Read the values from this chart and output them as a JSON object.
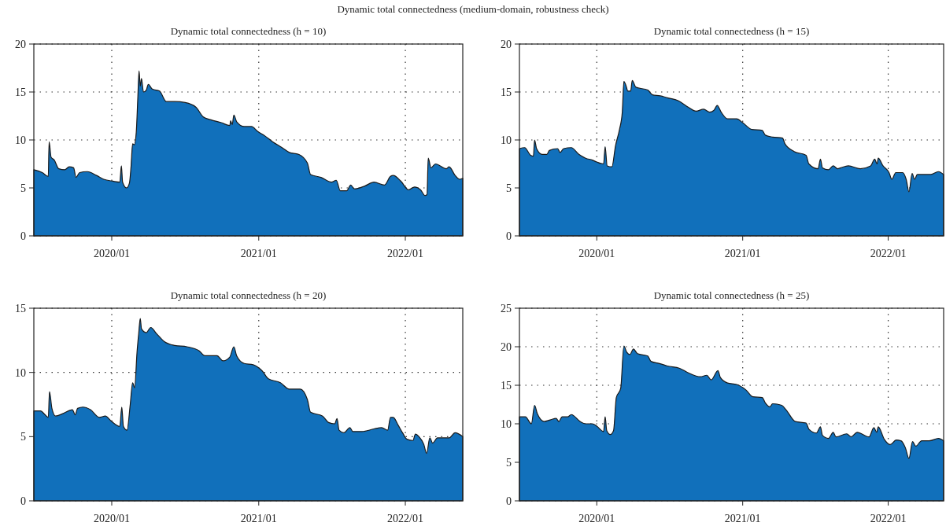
{
  "chart_data": [
    {
      "type": "other",
      "title": "Dynamic total connectedness (medium-domain, robustness check)"
    },
    {
      "type": "area",
      "title": "Dynamic total connectedness (h = 10)",
      "grid": true,
      "x": [
        "2019-06-21",
        "2019-07-12",
        "2019-07-27",
        "2019-07-29",
        "2019-08-03",
        "2019-08-11",
        "2019-08-22",
        "2019-09-06",
        "2019-09-17",
        "2019-09-28",
        "2019-10-04",
        "2019-10-13",
        "2019-11-01",
        "2019-11-24",
        "2019-12-12",
        "2020-01-04",
        "2020-01-21",
        "2020-01-25",
        "2020-01-28",
        "2020-02-07",
        "2020-02-14",
        "2020-02-18",
        "2020-02-22",
        "2020-02-26",
        "2020-03-02",
        "2020-03-06",
        "2020-03-09",
        "2020-03-12",
        "2020-03-15",
        "2020-03-20",
        "2020-03-27",
        "2020-04-01",
        "2020-04-11",
        "2020-04-29",
        "2020-05-16",
        "2020-06-06",
        "2020-07-02",
        "2020-07-29",
        "2020-08-16",
        "2020-09-04",
        "2020-09-30",
        "2020-10-21",
        "2020-10-23",
        "2020-10-27",
        "2020-10-31",
        "2020-11-07",
        "2020-11-26",
        "2020-12-14",
        "2020-12-29",
        "2021-01-17",
        "2021-02-05",
        "2021-02-28",
        "2021-03-18",
        "2021-04-10",
        "2021-05-02",
        "2021-05-10",
        "2021-06-05",
        "2021-07-01",
        "2021-07-13",
        "2021-07-23",
        "2021-08-08",
        "2021-08-18",
        "2021-08-27",
        "2021-09-22",
        "2021-10-15",
        "2021-11-10",
        "2021-11-25",
        "2021-12-02",
        "2021-12-21",
        "2022-01-09",
        "2022-01-24",
        "2022-02-08",
        "2022-02-19",
        "2022-02-24",
        "2022-02-27",
        "2022-03-06",
        "2022-03-17",
        "2022-04-13",
        "2022-04-20",
        "2022-05-05",
        "2022-05-16",
        "2022-05-24"
      ],
      "series": [
        {
          "color": "#1170bb",
          "values": [
            6.9,
            6.6,
            6.2,
            9.8,
            8.2,
            7.9,
            7.0,
            6.9,
            7.2,
            7.1,
            6.1,
            6.6,
            6.7,
            6.3,
            5.9,
            5.7,
            5.6,
            7.3,
            5.6,
            5.0,
            5.5,
            7.2,
            9.6,
            9.5,
            10.8,
            14.5,
            17.2,
            15.6,
            16.4,
            15.0,
            15.2,
            15.8,
            15.3,
            15.1,
            14.0,
            14.0,
            13.9,
            13.4,
            12.4,
            12.1,
            11.8,
            11.5,
            12.0,
            11.6,
            12.6,
            11.9,
            11.4,
            11.4,
            10.9,
            10.4,
            9.8,
            9.2,
            8.7,
            8.5,
            7.6,
            6.4,
            6.1,
            5.6,
            5.8,
            4.7,
            4.7,
            5.3,
            4.9,
            5.2,
            5.6,
            5.3,
            6.2,
            6.3,
            5.7,
            4.8,
            5.1,
            4.8,
            4.2,
            4.3,
            8.1,
            7.1,
            7.5,
            7.0,
            7.2,
            6.3,
            5.9,
            6.0
          ]
        }
      ],
      "xlim": [
        "2019-06-21",
        "2022-05-24"
      ],
      "ylim": [
        0,
        20
      ],
      "yticks": [
        0,
        5,
        10,
        15,
        20
      ],
      "xticks": [
        {
          "value": "2020-01-01",
          "label": "2020/01"
        },
        {
          "value": "2021-01-01",
          "label": "2021/01"
        },
        {
          "value": "2022-01-01",
          "label": "2022/01"
        }
      ]
    },
    {
      "type": "area",
      "title": "Dynamic total connectedness (h = 15)",
      "grid": true,
      "x": [
        "2019-06-21",
        "2019-07-04",
        "2019-07-19",
        "2019-07-26",
        "2019-07-29",
        "2019-08-03",
        "2019-08-17",
        "2019-08-29",
        "2019-09-04",
        "2019-09-25",
        "2019-10-01",
        "2019-10-10",
        "2019-10-29",
        "2019-11-17",
        "2019-12-04",
        "2019-12-21",
        "2020-01-01",
        "2020-01-18",
        "2020-01-22",
        "2020-01-27",
        "2020-02-08",
        "2020-02-17",
        "2020-02-27",
        "2020-03-05",
        "2020-03-09",
        "2020-03-14",
        "2020-03-19",
        "2020-03-26",
        "2020-03-30",
        "2020-04-08",
        "2020-05-08",
        "2020-05-20",
        "2020-06-08",
        "2020-06-26",
        "2020-07-23",
        "2020-08-18",
        "2020-09-06",
        "2020-09-25",
        "2020-10-10",
        "2020-10-21",
        "2020-10-29",
        "2020-11-08",
        "2020-11-24",
        "2020-12-17",
        "2021-01-01",
        "2021-01-24",
        "2021-02-19",
        "2021-02-27",
        "2021-03-17",
        "2021-04-11",
        "2021-04-17",
        "2021-05-10",
        "2021-06-09",
        "2021-06-16",
        "2021-07-09",
        "2021-07-15",
        "2021-07-20",
        "2021-08-04",
        "2021-08-16",
        "2021-08-27",
        "2021-09-04",
        "2021-09-23",
        "2021-10-23",
        "2021-11-18",
        "2021-11-28",
        "2021-12-04",
        "2021-12-07",
        "2021-12-19",
        "2022-01-03",
        "2022-01-10",
        "2022-01-20",
        "2022-02-06",
        "2022-02-15",
        "2022-02-22",
        "2022-03-02",
        "2022-03-08",
        "2022-03-15",
        "2022-04-18",
        "2022-05-07",
        "2022-05-20"
      ],
      "series": [
        {
          "color": "#1170bb",
          "values": [
            9.1,
            9.2,
            8.4,
            8.3,
            10.0,
            9.1,
            8.5,
            8.5,
            8.9,
            9.1,
            8.7,
            9.1,
            9.2,
            8.5,
            8.1,
            7.9,
            7.7,
            7.5,
            9.3,
            7.3,
            7.2,
            9.4,
            11.1,
            12.9,
            16.1,
            15.7,
            15.1,
            15.1,
            16.2,
            15.5,
            15.2,
            14.7,
            14.6,
            14.4,
            14.1,
            13.4,
            13.0,
            13.2,
            12.9,
            13.1,
            13.6,
            12.9,
            12.2,
            12.2,
            11.8,
            11.1,
            11.0,
            10.5,
            10.3,
            10.2,
            9.6,
            8.8,
            8.4,
            7.5,
            7.0,
            8.0,
            7.1,
            6.9,
            7.3,
            7.0,
            7.1,
            7.3,
            7.0,
            7.3,
            8.0,
            7.5,
            8.1,
            7.3,
            6.6,
            5.9,
            6.6,
            6.6,
            5.9,
            4.6,
            6.5,
            5.9,
            6.4,
            6.4,
            6.7,
            6.4
          ]
        }
      ],
      "xlim": [
        "2019-06-21",
        "2022-05-20"
      ],
      "ylim": [
        0,
        20
      ],
      "yticks": [
        0,
        5,
        10,
        15,
        20
      ],
      "xticks": [
        {
          "value": "2020-01-01",
          "label": "2020/01"
        },
        {
          "value": "2021-01-01",
          "label": "2021/01"
        },
        {
          "value": "2022-01-01",
          "label": "2022/01"
        }
      ]
    },
    {
      "type": "area",
      "title": "Dynamic total connectedness (h = 20)",
      "grid": true,
      "x": [
        "2019-06-21",
        "2019-07-08",
        "2019-07-19",
        "2019-07-27",
        "2019-07-30",
        "2019-08-05",
        "2019-08-14",
        "2019-09-02",
        "2019-09-25",
        "2019-10-02",
        "2019-10-08",
        "2019-10-21",
        "2019-11-09",
        "2019-12-01",
        "2019-12-16",
        "2019-12-31",
        "2020-01-21",
        "2020-01-26",
        "2020-01-30",
        "2020-02-08",
        "2020-02-16",
        "2020-02-22",
        "2020-02-27",
        "2020-03-04",
        "2020-03-08",
        "2020-03-12",
        "2020-03-15",
        "2020-03-27",
        "2020-04-07",
        "2020-04-22",
        "2020-05-11",
        "2020-06-06",
        "2020-07-06",
        "2020-08-05",
        "2020-08-20",
        "2020-09-19",
        "2020-10-04",
        "2020-10-21",
        "2020-10-31",
        "2020-11-07",
        "2020-11-26",
        "2020-12-18",
        "2021-01-10",
        "2021-01-25",
        "2021-02-24",
        "2021-03-18",
        "2021-04-14",
        "2021-05-02",
        "2021-05-10",
        "2021-06-09",
        "2021-06-24",
        "2021-07-09",
        "2021-07-15",
        "2021-07-20",
        "2021-08-01",
        "2021-08-16",
        "2021-08-23",
        "2021-09-15",
        "2021-10-15",
        "2021-11-03",
        "2021-11-18",
        "2021-11-25",
        "2021-12-02",
        "2021-12-14",
        "2021-12-25",
        "2022-01-05",
        "2022-01-20",
        "2022-01-26",
        "2022-02-04",
        "2022-02-16",
        "2022-02-23",
        "2022-03-03",
        "2022-03-10",
        "2022-03-22",
        "2022-04-20",
        "2022-05-05",
        "2022-05-24"
      ],
      "series": [
        {
          "color": "#1170bb",
          "values": [
            7.0,
            7.0,
            6.7,
            6.5,
            8.5,
            7.2,
            6.6,
            6.8,
            7.1,
            6.7,
            7.2,
            7.3,
            7.1,
            6.5,
            6.6,
            6.2,
            5.8,
            7.3,
            5.8,
            5.5,
            7.5,
            9.2,
            8.8,
            11.6,
            13.0,
            14.2,
            13.4,
            13.1,
            13.5,
            13.0,
            12.4,
            12.1,
            12.0,
            11.7,
            11.3,
            11.3,
            10.9,
            11.2,
            12.0,
            11.3,
            10.7,
            10.6,
            10.1,
            9.5,
            9.2,
            8.7,
            8.7,
            7.9,
            6.9,
            6.6,
            6.1,
            6.0,
            6.4,
            5.5,
            5.3,
            5.7,
            5.4,
            5.4,
            5.6,
            5.7,
            5.5,
            6.5,
            6.5,
            5.9,
            5.3,
            4.8,
            4.7,
            5.2,
            5.0,
            4.4,
            3.7,
            4.9,
            4.5,
            4.9,
            4.9,
            5.3,
            5.0
          ]
        }
      ],
      "xlim": [
        "2019-06-21",
        "2022-05-24"
      ],
      "ylim": [
        0,
        15
      ],
      "yticks": [
        0,
        5,
        10,
        15
      ],
      "xticks": [
        {
          "value": "2020-01-01",
          "label": "2020/01"
        },
        {
          "value": "2021-01-01",
          "label": "2021/01"
        },
        {
          "value": "2022-01-01",
          "label": "2022/01"
        }
      ]
    },
    {
      "type": "area",
      "title": "Dynamic total connectedness (h = 25)",
      "grid": true,
      "x": [
        "2019-06-21",
        "2019-07-06",
        "2019-07-21",
        "2019-07-29",
        "2019-08-05",
        "2019-08-22",
        "2019-09-06",
        "2019-09-21",
        "2019-09-28",
        "2019-10-06",
        "2019-10-20",
        "2019-10-29",
        "2019-11-20",
        "2019-12-04",
        "2019-12-21",
        "2020-01-01",
        "2020-01-18",
        "2020-01-22",
        "2020-01-26",
        "2020-02-04",
        "2020-02-12",
        "2020-02-19",
        "2020-03-01",
        "2020-03-09",
        "2020-03-16",
        "2020-03-24",
        "2020-04-02",
        "2020-04-12",
        "2020-05-08",
        "2020-05-16",
        "2020-06-08",
        "2020-06-26",
        "2020-07-27",
        "2020-08-18",
        "2020-09-17",
        "2020-10-03",
        "2020-10-14",
        "2020-10-31",
        "2020-11-06",
        "2020-11-24",
        "2020-12-17",
        "2021-01-09",
        "2021-01-27",
        "2021-02-19",
        "2021-02-27",
        "2021-03-10",
        "2021-03-17",
        "2021-04-09",
        "2021-04-20",
        "2021-05-13",
        "2021-06-09",
        "2021-06-16",
        "2021-07-05",
        "2021-07-15",
        "2021-07-20",
        "2021-08-04",
        "2021-08-16",
        "2021-08-23",
        "2021-09-19",
        "2021-09-30",
        "2021-10-15",
        "2021-11-14",
        "2021-11-26",
        "2021-12-03",
        "2021-12-07",
        "2021-12-22",
        "2022-01-06",
        "2022-01-21",
        "2022-02-02",
        "2022-02-13",
        "2022-02-22",
        "2022-03-03",
        "2022-03-11",
        "2022-03-26",
        "2022-04-14",
        "2022-05-07",
        "2022-05-20"
      ],
      "series": [
        {
          "color": "#1170bb",
          "values": [
            10.9,
            10.9,
            10.0,
            12.4,
            11.3,
            10.3,
            10.5,
            10.7,
            10.3,
            10.9,
            10.9,
            11.2,
            10.3,
            10.0,
            10.0,
            9.7,
            9.0,
            10.9,
            9.1,
            8.6,
            9.1,
            13.4,
            14.6,
            20.1,
            19.3,
            19.0,
            19.7,
            19.1,
            18.8,
            18.1,
            17.8,
            17.5,
            17.2,
            16.6,
            16.1,
            16.3,
            15.7,
            16.9,
            16.0,
            15.3,
            15.1,
            14.4,
            13.5,
            13.4,
            12.7,
            12.2,
            12.6,
            12.4,
            11.8,
            10.3,
            10.1,
            9.3,
            8.8,
            9.6,
            8.5,
            8.1,
            8.9,
            8.3,
            8.7,
            8.3,
            8.9,
            8.3,
            9.5,
            8.9,
            9.6,
            8.0,
            7.3,
            7.9,
            7.8,
            6.9,
            5.5,
            7.7,
            7.1,
            7.8,
            7.8,
            8.1,
            7.8
          ]
        }
      ],
      "xlim": [
        "2019-06-21",
        "2022-05-20"
      ],
      "ylim": [
        0,
        25
      ],
      "yticks": [
        0,
        5,
        10,
        15,
        20,
        25
      ],
      "xticks": [
        {
          "value": "2020-01-01",
          "label": "2020/01"
        },
        {
          "value": "2021-01-01",
          "label": "2021/01"
        },
        {
          "value": "2022-01-01",
          "label": "2022/01"
        }
      ]
    }
  ]
}
